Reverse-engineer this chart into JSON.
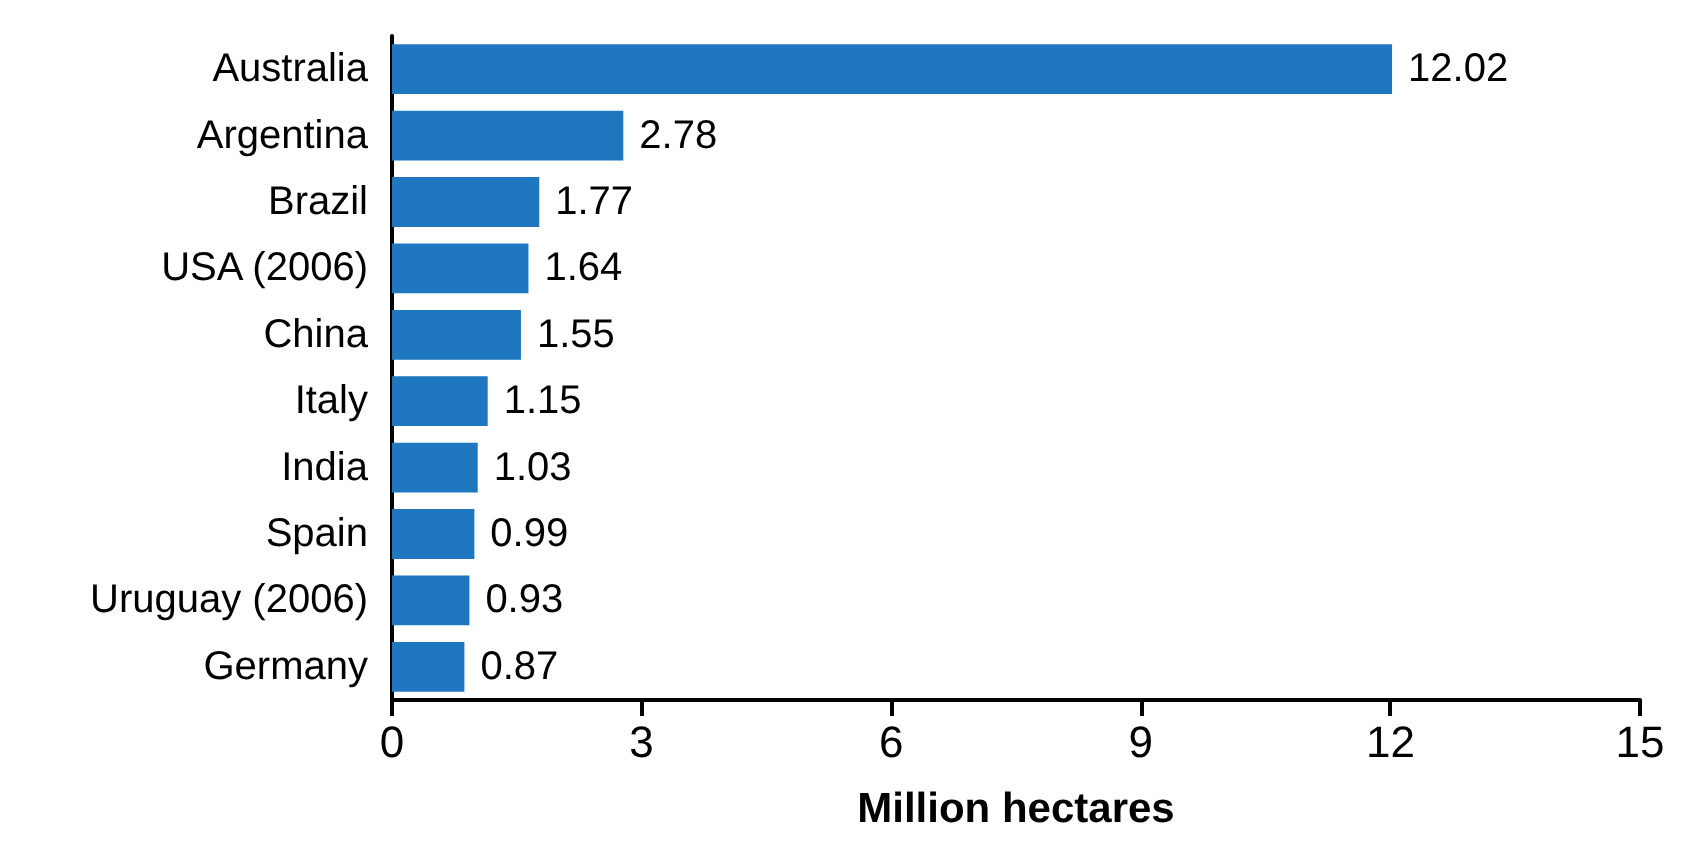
{
  "chart_data": {
    "type": "bar",
    "orientation": "horizontal",
    "xlabel": "Million hectares",
    "categories": [
      "Australia",
      "Argentina",
      "Brazil",
      "USA (2006)",
      "China",
      "Italy",
      "India",
      "Spain",
      "Uruguay (2006)",
      "Germany"
    ],
    "values": [
      12.02,
      2.78,
      1.77,
      1.64,
      1.55,
      1.15,
      1.03,
      0.99,
      0.93,
      0.87
    ],
    "color": "#1f77bf",
    "xlim": [
      0,
      15
    ],
    "xticks": [
      0,
      3,
      6,
      9,
      12,
      15
    ],
    "data_labels": true,
    "grid": false
  }
}
